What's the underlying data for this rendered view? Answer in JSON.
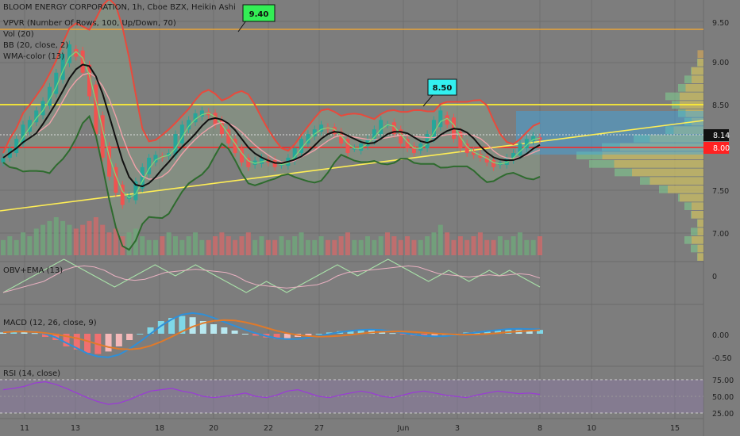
{
  "header": {
    "title": "BLOOM ENERGY CORPORATION, 1h, Cboe BZX, Heikin Ashi",
    "indicators": [
      "VPVR (Number Of Rows, 100, Up/Down, 70)",
      "Vol (20)",
      "BB (20, close, 2)",
      "WMA-color (13)"
    ]
  },
  "panes": {
    "obv_label": "OBV+EMA (13)",
    "macd_label": "MACD (12, 26, close, 9)",
    "rsi_label": "RSI (14, close)"
  },
  "annotations": {
    "high_tag": "9.40",
    "mid_tag": "8.50"
  },
  "price_tags": {
    "last": "8.14",
    "level": "8.00"
  },
  "colors": {
    "background": "#7d7d7d",
    "bull": "#26a69a",
    "bear": "#ef5350",
    "bb_upper": "#e84a3c",
    "bb_lower": "#2e6b2e",
    "wma": "#111111",
    "hline_orange": "#e8a33a",
    "hline_yellow": "#ffee33",
    "hline_red": "#ff2222",
    "trend": "#ffee55",
    "tag_green": "#33ee55",
    "tag_cyan": "#33f0f0"
  },
  "chart_data": [
    {
      "type": "candlestick",
      "name": "price",
      "x_ticks": [
        "11",
        "13",
        "18",
        "20",
        "22",
        "27",
        "Jun",
        "3",
        "8",
        "10",
        "15"
      ],
      "y_ticks": [
        "9.50",
        "9.00",
        "8.50",
        "8.00",
        "7.50",
        "7.00"
      ],
      "ylim": [
        6.85,
        9.62
      ],
      "last_price": 8.14,
      "horizontal_levels": [
        9.4,
        8.5,
        8.0
      ],
      "close": [
        7.95,
        8.05,
        8.15,
        8.3,
        8.35,
        8.45,
        8.55,
        8.7,
        8.85,
        9.05,
        9.15,
        9.02,
        8.85,
        8.6,
        8.2,
        7.95,
        7.75,
        7.58,
        7.45,
        7.55,
        7.7,
        7.85,
        7.95,
        7.98,
        7.95,
        8.0,
        8.2,
        8.3,
        8.35,
        8.42,
        8.45,
        8.4,
        8.3,
        8.2,
        8.1,
        8.0,
        7.9,
        7.85,
        7.92,
        7.95,
        7.9,
        7.85,
        7.88,
        7.95,
        8.05,
        8.15,
        8.2,
        8.25,
        8.3,
        8.25,
        8.2,
        8.1,
        8.0,
        8.05,
        8.1,
        8.15,
        8.25,
        8.35,
        8.3,
        8.2,
        8.1,
        8.05,
        8.0,
        8.1,
        8.2,
        8.35,
        8.45,
        8.3,
        8.15,
        8.05,
        8.0,
        7.98,
        7.95,
        7.9,
        7.85,
        7.9,
        7.95,
        8.0,
        8.1,
        8.15,
        8.18,
        8.14
      ],
      "volume": [
        0.4,
        0.5,
        0.4,
        0.6,
        0.5,
        0.7,
        0.8,
        0.9,
        1.0,
        0.9,
        0.8,
        0.7,
        0.8,
        0.9,
        1.0,
        0.8,
        0.6,
        0.7,
        0.5,
        0.6,
        0.7,
        0.5,
        0.4,
        0.4,
        0.5,
        0.6,
        0.5,
        0.4,
        0.5,
        0.6,
        0.4,
        0.4,
        0.5,
        0.6,
        0.5,
        0.4,
        0.5,
        0.6,
        0.4,
        0.5,
        0.4,
        0.4,
        0.5,
        0.4,
        0.5,
        0.6,
        0.4,
        0.4,
        0.5,
        0.4,
        0.4,
        0.5,
        0.6,
        0.4,
        0.4,
        0.5,
        0.4,
        0.5,
        0.6,
        0.5,
        0.4,
        0.5,
        0.4,
        0.4,
        0.5,
        0.6,
        0.8,
        0.6,
        0.4,
        0.5,
        0.4,
        0.5,
        0.6,
        0.4,
        0.4,
        0.5,
        0.4,
        0.5,
        0.6,
        0.4,
        0.4,
        0.5
      ],
      "volume_profile_up": [
        0,
        0,
        0,
        0,
        0,
        0,
        0.05,
        0.1,
        0.15,
        0.2,
        0.3,
        0.25,
        0.2,
        0.15,
        0.3,
        0.55,
        0.8,
        1.0,
        0.9,
        0.7,
        0.5,
        0.35,
        0.2,
        0.15,
        0.1,
        0.05,
        0.1,
        0.15,
        0.1,
        0.05
      ],
      "volume_profile_down": [
        0,
        0,
        0,
        0,
        0,
        0.05,
        0.05,
        0.1,
        0.1,
        0.15,
        0.2,
        0.2,
        0.15,
        0.1,
        0.25,
        0.45,
        0.7,
        0.85,
        0.75,
        0.6,
        0.45,
        0.3,
        0.2,
        0.1,
        0.1,
        0.05,
        0.05,
        0.1,
        0.05,
        0.05
      ]
    },
    {
      "type": "line",
      "name": "obv",
      "y_ticks": [
        "0"
      ],
      "values": [
        -3,
        -2,
        -1,
        0,
        1,
        2,
        3,
        2,
        1,
        0,
        -1,
        -2,
        -1,
        0,
        1,
        2,
        1,
        0,
        1,
        2,
        1,
        0,
        -1,
        -2,
        -3,
        -2,
        -1,
        -2,
        -3,
        -2,
        -1,
        0,
        1,
        2,
        1,
        0,
        1,
        2,
        3,
        2,
        1,
        0,
        -1,
        0,
        1,
        0,
        -1,
        0,
        1,
        0,
        1,
        0,
        -1,
        -2
      ]
    },
    {
      "type": "bar",
      "name": "macd",
      "y_ticks": [
        "0.00",
        "-0.50"
      ],
      "histogram": [
        0.02,
        0.04,
        0.03,
        0.01,
        -0.05,
        -0.1,
        -0.2,
        -0.25,
        -0.3,
        -0.32,
        -0.28,
        -0.2,
        -0.1,
        0.0,
        0.1,
        0.2,
        0.25,
        0.28,
        0.26,
        0.2,
        0.15,
        0.1,
        0.05,
        0.0,
        -0.03,
        -0.06,
        -0.08,
        -0.07,
        -0.05,
        -0.03,
        0.0,
        0.02,
        0.04,
        0.05,
        0.06,
        0.05,
        0.03,
        0.01,
        -0.01,
        -0.03,
        -0.04,
        -0.03,
        -0.02,
        0.0,
        0.02,
        0.03,
        0.05,
        0.06,
        0.07,
        0.06,
        0.05,
        0.06
      ]
    },
    {
      "type": "line",
      "name": "rsi",
      "y_ticks": [
        "75.00",
        "50.00",
        "25.00"
      ],
      "ylim": [
        20,
        85
      ],
      "values": [
        60,
        62,
        65,
        70,
        72,
        68,
        62,
        55,
        48,
        42,
        38,
        40,
        45,
        52,
        58,
        60,
        62,
        58,
        55,
        50,
        48,
        50,
        52,
        55,
        50,
        48,
        52,
        58,
        60,
        55,
        50,
        48,
        52,
        55,
        58,
        55,
        50,
        48,
        52,
        56,
        58,
        55,
        52,
        50,
        48,
        52,
        55,
        58,
        56,
        54,
        55,
        53
      ]
    }
  ]
}
